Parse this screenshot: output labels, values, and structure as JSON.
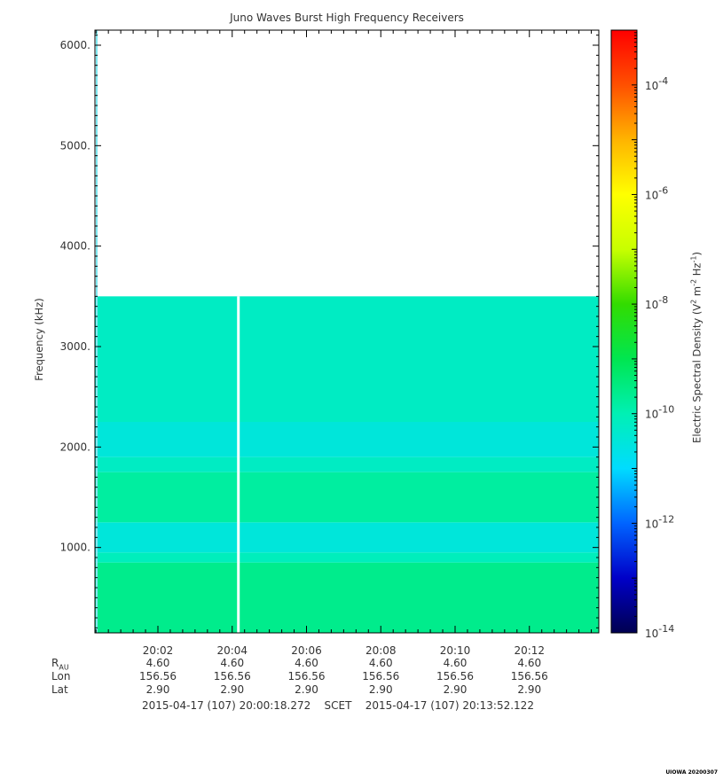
{
  "title": "Juno Waves Burst High Frequency Receivers",
  "ylabel": "Frequency (kHz)",
  "colorbar": {
    "label_prefix": "Electric Spectral Density (V",
    "label_sup1": "2",
    "label_mid": " m",
    "label_sup2": "-2",
    "label_mid2": " Hz",
    "label_sup3": "-1",
    "label_suffix": ")",
    "ticks": [
      {
        "exp": "-4",
        "value": -4
      },
      {
        "exp": "-6",
        "value": -6
      },
      {
        "exp": "-8",
        "value": -8
      },
      {
        "exp": "-10",
        "value": -10
      },
      {
        "exp": "-12",
        "value": -12
      },
      {
        "exp": "-14",
        "value": -14
      }
    ],
    "range_log10": [
      -14,
      -3
    ],
    "colors": [
      "#000050",
      "#0000c8",
      "#0064ff",
      "#00dcff",
      "#00f0b4",
      "#00e650",
      "#32dc00",
      "#c8ff00",
      "#ffff00",
      "#ffb400",
      "#ff5000",
      "#ff0000"
    ]
  },
  "chart_data": {
    "type": "heatmap",
    "title": "Juno Waves Burst High Frequency Receivers",
    "ylabel": "Frequency (kHz)",
    "xlabel": "",
    "x_range_seconds_after_2000": [
      18.272,
      832.122
    ],
    "y_range_khz": [
      150,
      6150
    ],
    "data_top_khz": 3500,
    "data_gap_time": "20:04:10",
    "y_ticks": [
      {
        "label": "1000.",
        "value": 1000
      },
      {
        "label": "2000.",
        "value": 2000
      },
      {
        "label": "3000.",
        "value": 3000
      },
      {
        "label": "4000.",
        "value": 4000
      },
      {
        "label": "5000.",
        "value": 5000
      },
      {
        "label": "6000.",
        "value": 6000
      }
    ],
    "x_ticks": [
      {
        "label": "20:02",
        "seconds": 120
      },
      {
        "label": "20:04",
        "seconds": 240
      },
      {
        "label": "20:06",
        "seconds": 360
      },
      {
        "label": "20:08",
        "seconds": 480
      },
      {
        "label": "20:10",
        "seconds": 600
      },
      {
        "label": "20:12",
        "seconds": 720
      }
    ],
    "spectral_density_bands_log10": [
      {
        "from_khz": 150,
        "to_khz": 850,
        "value": -9.6
      },
      {
        "from_khz": 850,
        "to_khz": 950,
        "value": -10.1
      },
      {
        "from_khz": 950,
        "to_khz": 1250,
        "value": -10.5
      },
      {
        "from_khz": 1250,
        "to_khz": 1750,
        "value": -9.8
      },
      {
        "from_khz": 1750,
        "to_khz": 1900,
        "value": -10.2
      },
      {
        "from_khz": 1900,
        "to_khz": 2250,
        "value": -10.5
      },
      {
        "from_khz": 2250,
        "to_khz": 3500,
        "value": -10.2
      }
    ]
  },
  "ephemeris": {
    "rows": [
      {
        "name": "R",
        "sub": "AU",
        "values": [
          "4.60",
          "4.60",
          "4.60",
          "4.60",
          "4.60",
          "4.60"
        ]
      },
      {
        "name": "Lon",
        "sub": "",
        "values": [
          "156.56",
          "156.56",
          "156.56",
          "156.56",
          "156.56",
          "156.56"
        ]
      },
      {
        "name": "Lat",
        "sub": "",
        "values": [
          "2.90",
          "2.90",
          "2.90",
          "2.90",
          "2.90",
          "2.90"
        ]
      }
    ]
  },
  "scet": {
    "start": "2015-04-17 (107) 20:00:18.272",
    "label": "SCET",
    "end": "2015-04-17 (107) 20:13:52.122"
  },
  "stamp": "UIOWA 20200307"
}
